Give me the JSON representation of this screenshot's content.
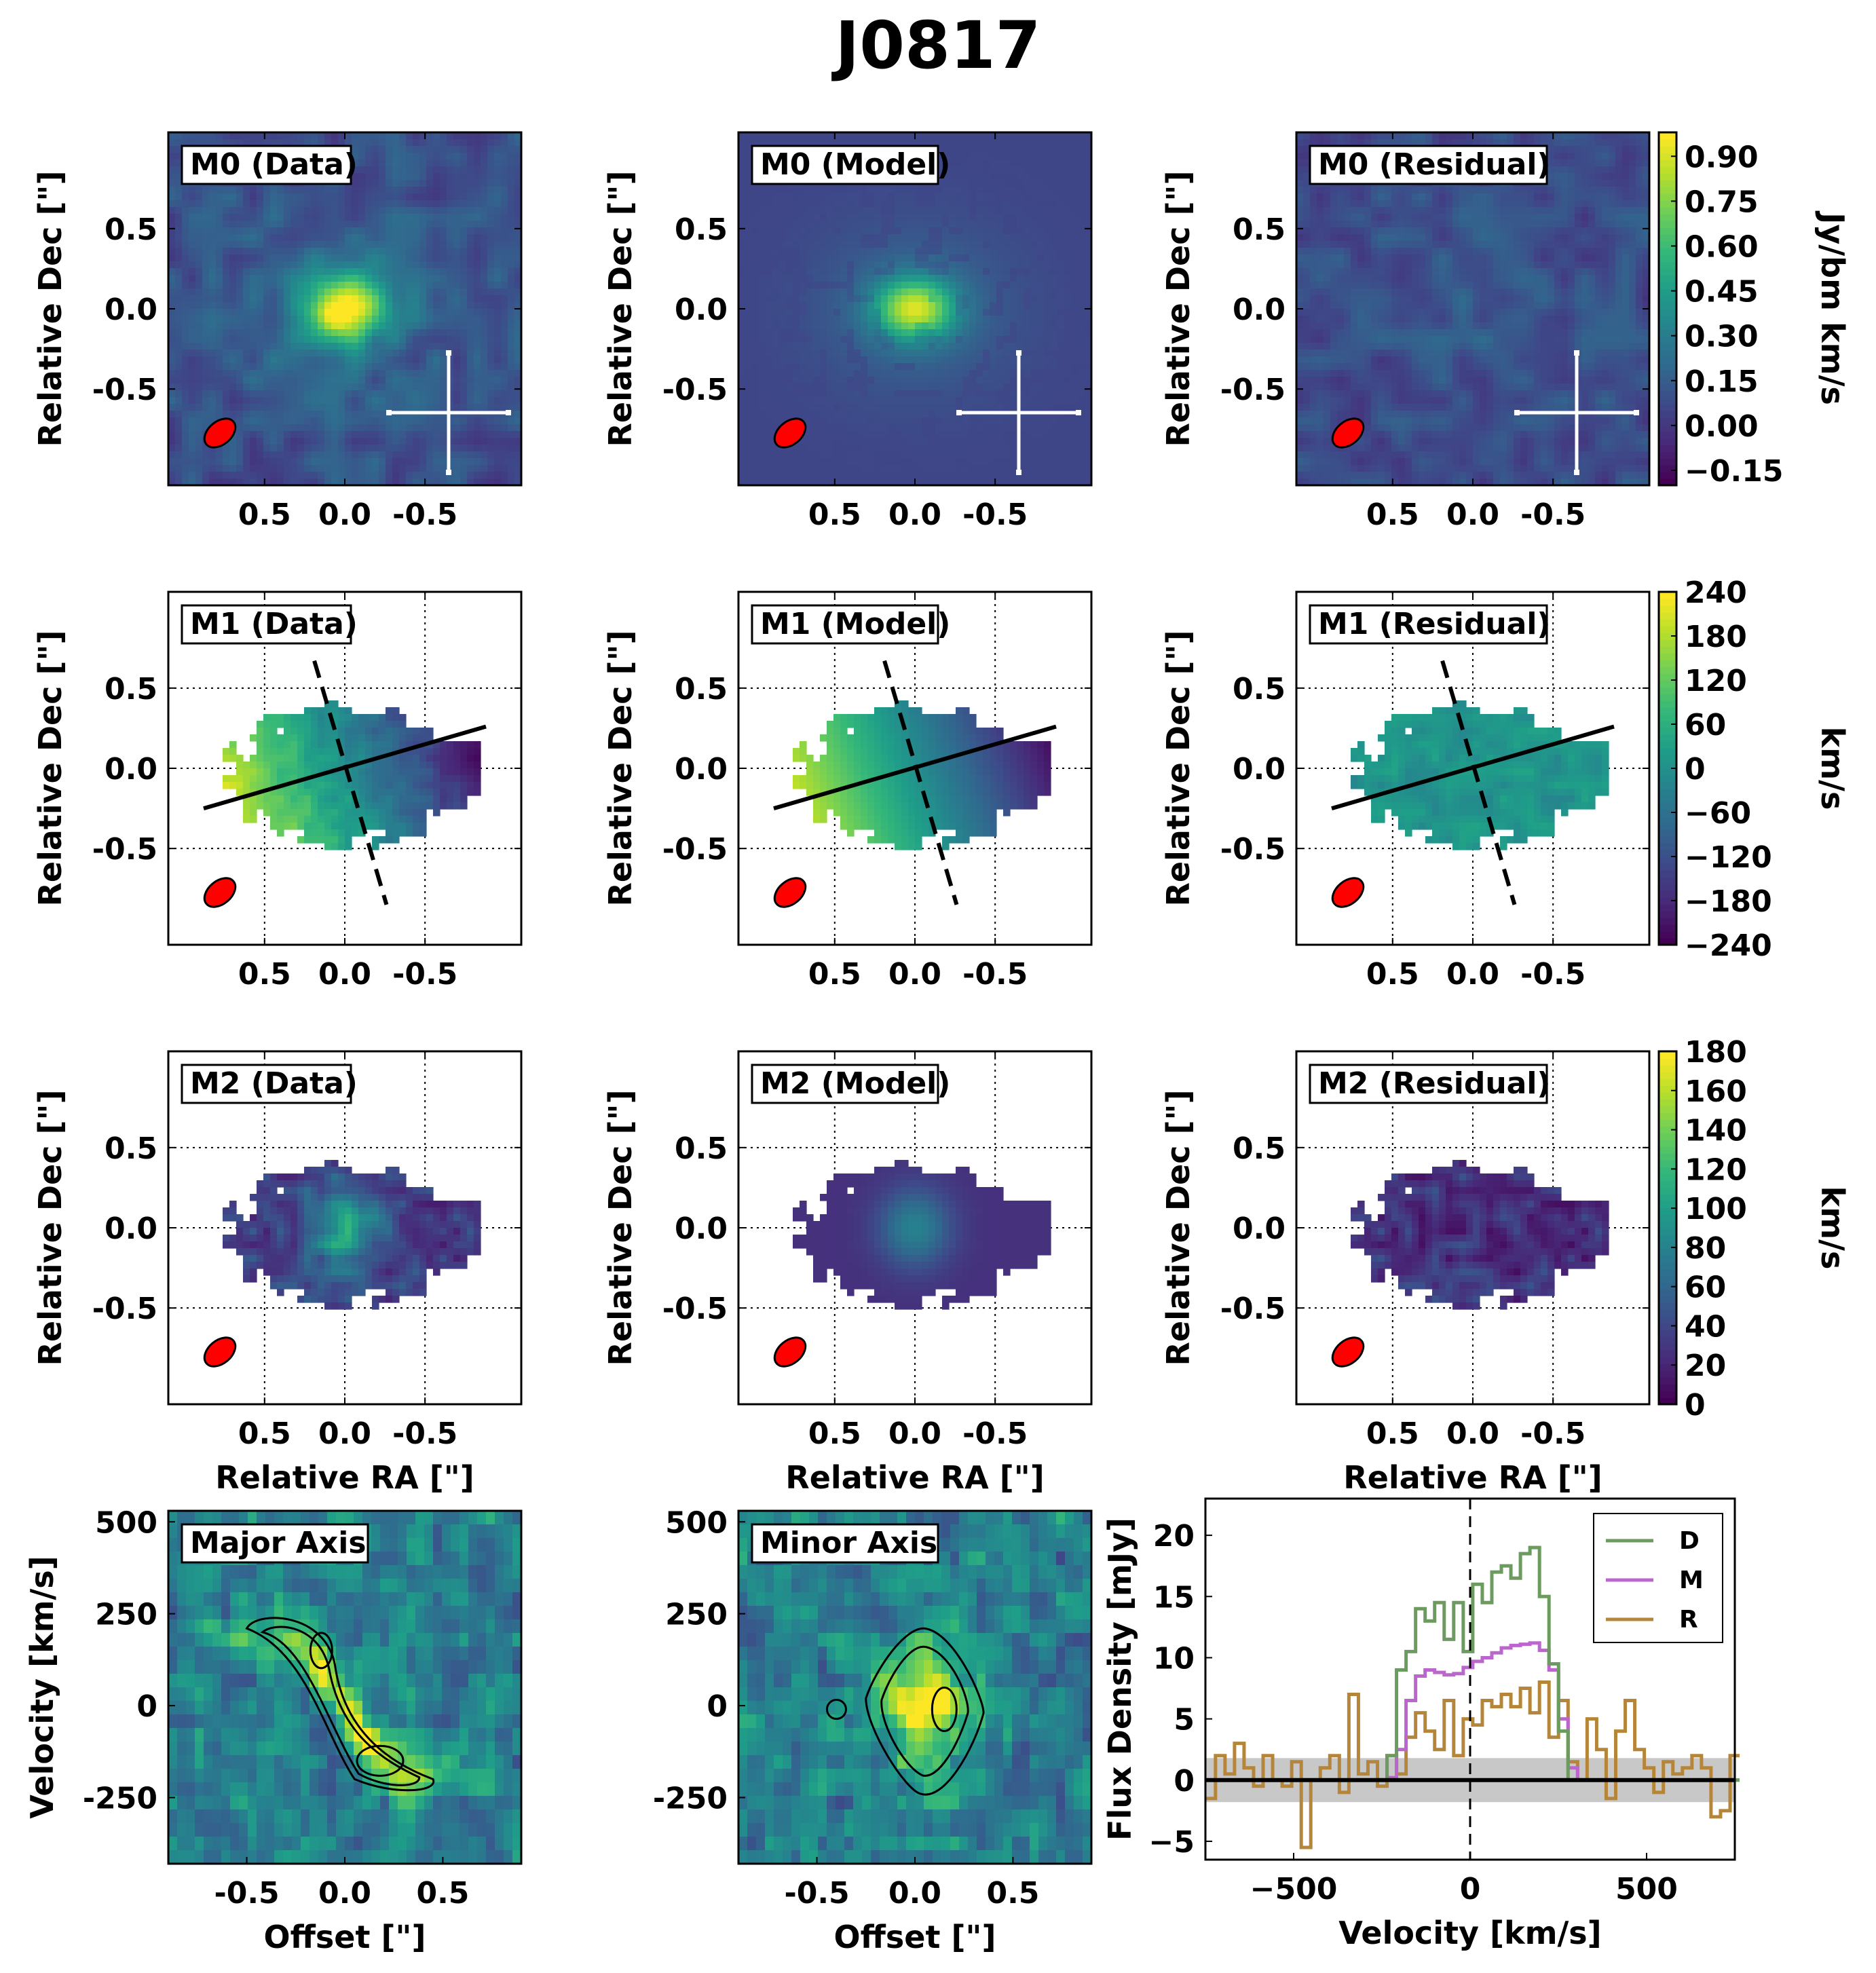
{
  "figure_title": "J0817",
  "colors": {
    "viridis": [
      "#440154",
      "#482878",
      "#3e4989",
      "#31688e",
      "#26828e",
      "#1f9e89",
      "#35b779",
      "#6ece58",
      "#b5de2b",
      "#fde725"
    ],
    "beam": "#ff0000",
    "line_data": "#6b9b5e",
    "line_model": "#bb66cc",
    "line_residual": "#b5863a",
    "noise_band": "#c8c8c8"
  },
  "labels": {
    "dec_label": "Relative Dec [\"]",
    "ra_label": "Relative RA [\"]",
    "offset_label": "Offset [\"]",
    "pv_ylabel": "Velocity [km/s]",
    "spec_xlabel": "Velocity [km/s]",
    "spec_ylabel": "Flux Density [mJy]"
  },
  "chart_data": [
    {
      "type": "heatmap",
      "rows": [
        {
          "moment": "M0",
          "panels": [
            "M0 (Data)",
            "M0 (Model)",
            "M0 (Residual)"
          ],
          "xticks": [
            "0.5",
            "0.0",
            "-0.5"
          ],
          "yticks": [
            "0.5",
            "0.0",
            "-0.5"
          ],
          "xlim": [
            1.1,
            -1.1
          ],
          "ylim": [
            -1.1,
            1.1
          ],
          "colorbar": {
            "label": "Jy/bm km/s",
            "ticks": [
              "0.90",
              "0.75",
              "0.60",
              "0.45",
              "0.30",
              "0.15",
              "0.00",
              "−0.15"
            ],
            "range": [
              -0.2,
              0.98
            ]
          }
        },
        {
          "moment": "M1",
          "panels": [
            "M1 (Data)",
            "M1 (Model)",
            "M1 (Residual)"
          ],
          "xticks": [
            "0.5",
            "0.0",
            "-0.5"
          ],
          "yticks": [
            "0.5",
            "0.0",
            "-0.5"
          ],
          "xlim": [
            1.1,
            -1.1
          ],
          "ylim": [
            -1.1,
            1.1
          ],
          "grid": true,
          "colorbar": {
            "label": "km/s",
            "ticks": [
              "240",
              "180",
              "120",
              "60",
              "0",
              "−60",
              "−120",
              "−180",
              "−240"
            ],
            "range": [
              -240,
              240
            ]
          }
        },
        {
          "moment": "M2",
          "panels": [
            "M2 (Data)",
            "M2 (Model)",
            "M2 (Residual)"
          ],
          "xticks": [
            "0.5",
            "0.0",
            "-0.5"
          ],
          "yticks": [
            "0.5",
            "0.0",
            "-0.5"
          ],
          "xlim": [
            1.1,
            -1.1
          ],
          "ylim": [
            -1.1,
            1.1
          ],
          "grid": true,
          "colorbar": {
            "label": "km/s",
            "ticks": [
              "180",
              "160",
              "140",
              "120",
              "100",
              "80",
              "60",
              "40",
              "20",
              "0"
            ],
            "range": [
              0,
              180
            ]
          }
        }
      ]
    },
    {
      "type": "heatmap",
      "title": "Major Axis",
      "xlabel": "Offset [\"]",
      "ylabel": "Velocity [km/s]",
      "xticks": [
        "-0.5",
        "0.0",
        "0.5"
      ],
      "yticks": [
        "500",
        "250",
        "0",
        "-250"
      ],
      "xlim": [
        -0.9,
        0.9
      ],
      "ylim": [
        -430,
        530
      ]
    },
    {
      "type": "heatmap",
      "title": "Minor Axis",
      "xlabel": "Offset [\"]",
      "ylabel": "",
      "xticks": [
        "-0.5",
        "0.0",
        "0.5"
      ],
      "yticks": [
        "500",
        "250",
        "0",
        "-250"
      ],
      "xlim": [
        -0.9,
        0.9
      ],
      "ylim": [
        -430,
        530
      ]
    },
    {
      "type": "line",
      "xlabel": "Velocity [km/s]",
      "ylabel": "Flux Density [mJy]",
      "xlim": [
        -750,
        750
      ],
      "ylim": [
        -6.5,
        23
      ],
      "xticks": [
        "−500",
        "0",
        "500"
      ],
      "yticks": [
        "20",
        "15",
        "10",
        "5",
        "0",
        "−5"
      ],
      "noise_band": [
        -1.8,
        1.8
      ],
      "legend_position": "top-right",
      "x": [
        -735,
        -708,
        -681,
        -654,
        -627,
        -600,
        -573,
        -546,
        -519,
        -492,
        -465,
        -438,
        -411,
        -384,
        -357,
        -330,
        -303,
        -276,
        -249,
        -222,
        -195,
        -168,
        -141,
        -114,
        -87,
        -60,
        -33,
        -6,
        21,
        48,
        75,
        102,
        129,
        156,
        183,
        210,
        237,
        264,
        291,
        318,
        345,
        372,
        399,
        426,
        453,
        480,
        507,
        534,
        561,
        588,
        615,
        642,
        669,
        696,
        723,
        750
      ],
      "series": [
        {
          "name": "D",
          "values": [
            0,
            0,
            0,
            0,
            0,
            0,
            0,
            0,
            0,
            0,
            0,
            0,
            0,
            0,
            0,
            0,
            0,
            0,
            0,
            2.0,
            9.0,
            10.5,
            14.0,
            13.0,
            14.5,
            11.5,
            14.5,
            10.5,
            16.0,
            14.5,
            17.0,
            17.5,
            16.5,
            18.5,
            19.0,
            15.0,
            9.5,
            4.0,
            0,
            0,
            0,
            0,
            0,
            0,
            0,
            0,
            0,
            0,
            0,
            0,
            0,
            0,
            0,
            0,
            0,
            0
          ]
        },
        {
          "name": "M",
          "values": [
            0,
            0,
            0,
            0,
            0,
            0,
            0,
            0,
            0,
            0,
            0,
            0,
            0,
            0,
            0,
            0,
            0,
            0,
            0,
            0.2,
            2.5,
            6.5,
            8.5,
            9.0,
            8.8,
            8.6,
            8.7,
            9.2,
            9.7,
            10.0,
            10.4,
            10.8,
            11.0,
            11.1,
            11.2,
            10.6,
            9.0,
            5.0,
            1.0,
            0,
            0,
            0,
            0,
            0,
            0,
            0,
            0,
            0,
            0,
            0,
            0,
            0,
            0,
            0,
            0,
            0
          ]
        },
        {
          "name": "R",
          "values": [
            -1.5,
            2.0,
            0.5,
            3.0,
            1.0,
            -0.5,
            2.0,
            0.0,
            -0.5,
            1.5,
            -5.5,
            0.0,
            1.0,
            2.0,
            -1.0,
            7.0,
            0.5,
            1.5,
            -0.5,
            2.0,
            0.5,
            3.5,
            5.5,
            4.0,
            2.5,
            6.5,
            2.0,
            5.0,
            4.5,
            6.5,
            6.0,
            7.0,
            6.0,
            7.5,
            5.5,
            8.0,
            3.5,
            6.5,
            1.5,
            0.0,
            5.0,
            2.5,
            -1.5,
            4.0,
            6.5,
            2.5,
            1.0,
            -1.0,
            1.5,
            0.5,
            1.0,
            2.0,
            1.0,
            -3.0,
            -2.5,
            2.0
          ]
        }
      ]
    }
  ]
}
